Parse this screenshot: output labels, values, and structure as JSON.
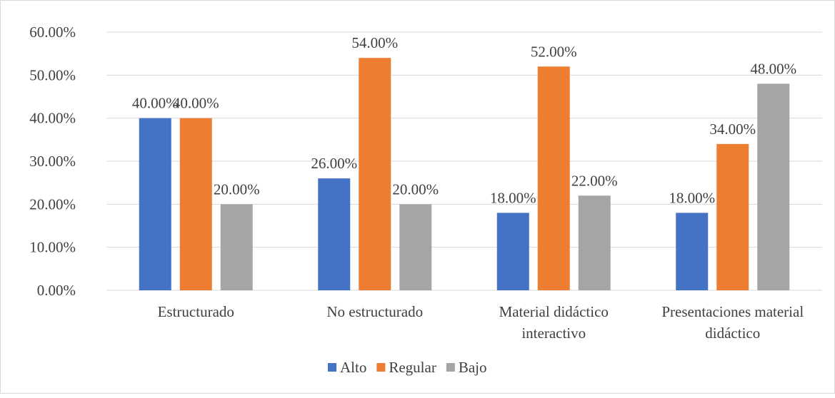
{
  "chart_data": {
    "type": "bar",
    "title": "",
    "xlabel": "",
    "ylabel": "",
    "categories": [
      [
        "Estructurado"
      ],
      [
        "No estructurado"
      ],
      [
        "Material didáctico",
        "interactivo"
      ],
      [
        "Presentaciones material",
        "didáctico"
      ]
    ],
    "series": [
      {
        "name": "Alto",
        "color": "#4472c4",
        "values": [
          0.4,
          0.26,
          0.18,
          0.18
        ],
        "labels": [
          "40.00%",
          "26.00%",
          "18.00%",
          "18.00%"
        ]
      },
      {
        "name": "Regular",
        "color": "#ed7d31",
        "values": [
          0.4,
          0.54,
          0.52,
          0.34
        ],
        "labels": [
          "40.00%",
          "54.00%",
          "52.00%",
          "34.00%"
        ]
      },
      {
        "name": "Bajo",
        "color": "#a5a5a5",
        "values": [
          0.2,
          0.2,
          0.22,
          0.48
        ],
        "labels": [
          "20.00%",
          "20.00%",
          "22.00%",
          "48.00%"
        ]
      }
    ],
    "ylim": [
      0,
      0.6
    ],
    "yticks": [
      0,
      0.1,
      0.2,
      0.3,
      0.4,
      0.5,
      0.6
    ],
    "ytick_labels": [
      "0.00%",
      "10.00%",
      "20.00%",
      "30.00%",
      "40.00%",
      "50.00%",
      "60.00%"
    ],
    "grid": true,
    "gridline_color": "#d9d9d9",
    "legend_position": "bottom"
  }
}
